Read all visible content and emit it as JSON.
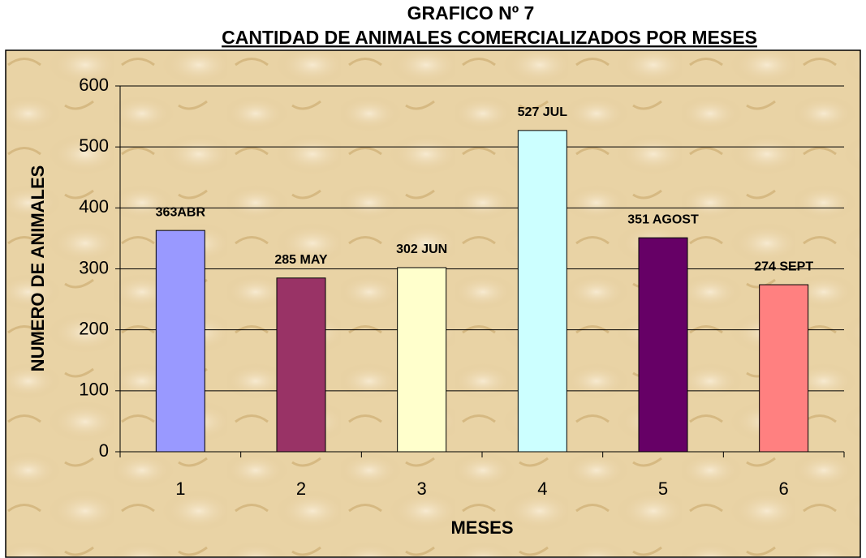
{
  "chart_data": {
    "type": "bar",
    "title": "GRAFICO Nº 7",
    "subtitle": "CANTIDAD DE ANIMALES COMERCIALIZADOS POR MESES",
    "x_label": "MESES",
    "y_label": "NUMERO DE ANIMALES",
    "categories": [
      "1",
      "2",
      "3",
      "4",
      "5",
      "6"
    ],
    "values": [
      363,
      285,
      302,
      527,
      351,
      274
    ],
    "value_labels": [
      "363ABR",
      "285 MAY",
      "302 JUN",
      "527 JUL",
      "351 AGOST",
      "274 SEPT"
    ],
    "colors": [
      "#9999ff",
      "#993366",
      "#ffffcc",
      "#ccffff",
      "#660066",
      "#ff8080"
    ],
    "ylim": [
      0,
      600
    ],
    "yticks": [
      0,
      100,
      200,
      300,
      400,
      500,
      600
    ],
    "grid": true
  }
}
